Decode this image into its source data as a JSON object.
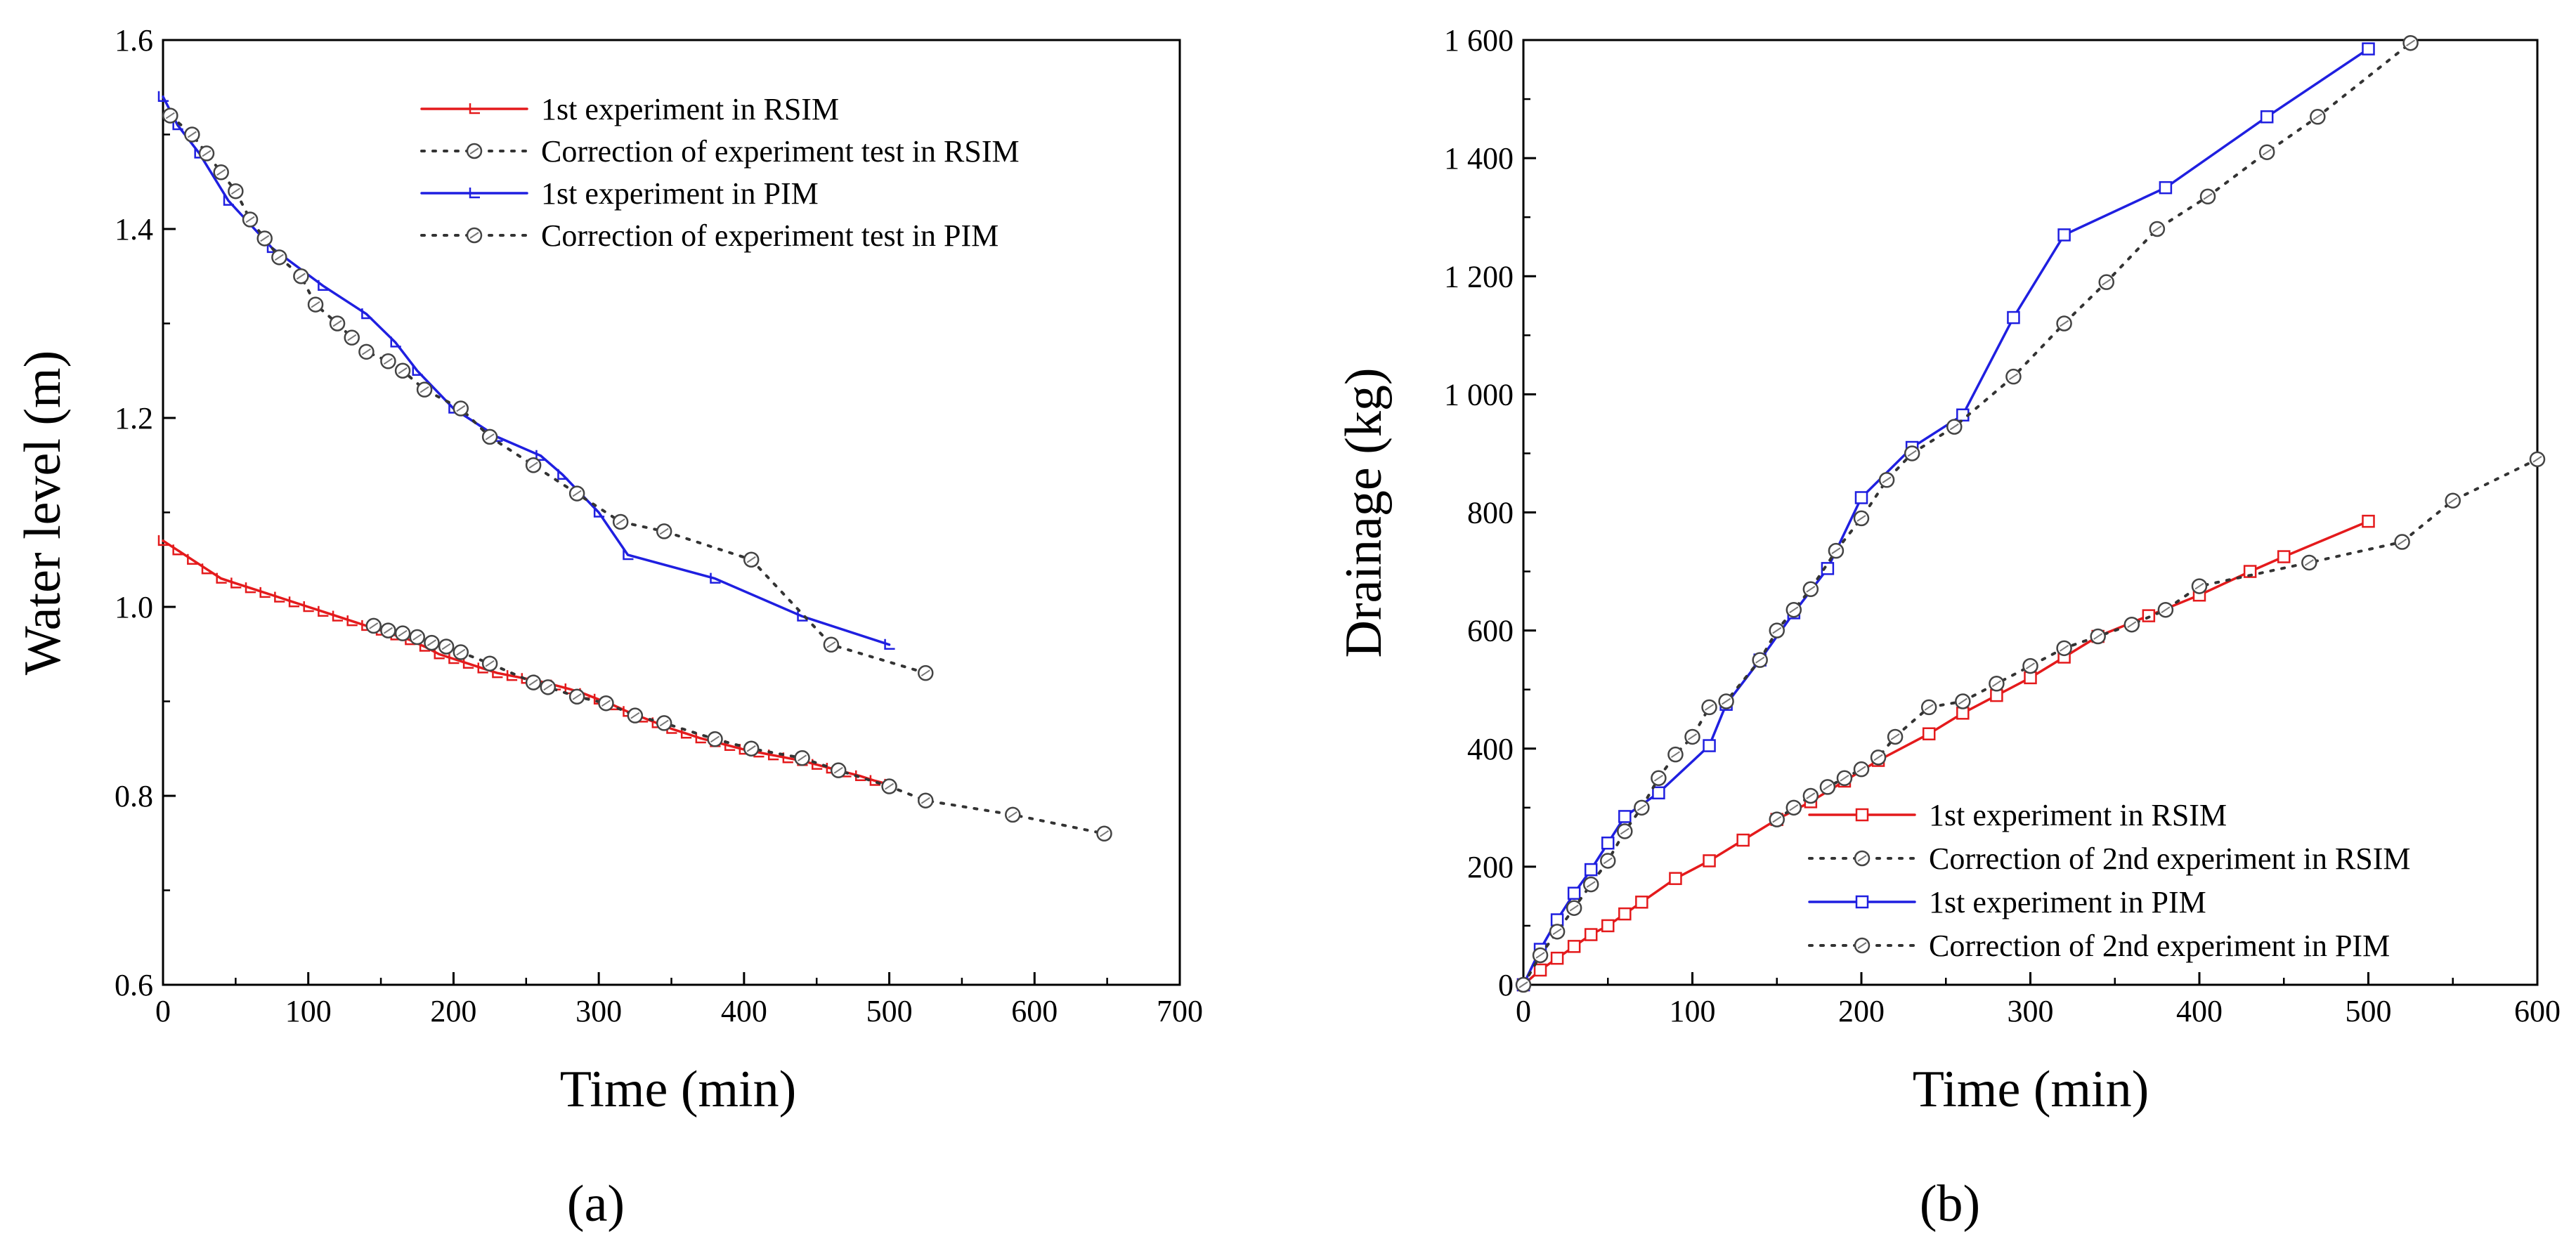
{
  "chart_data": [
    {
      "type": "line",
      "panel": "(a)",
      "title": "",
      "xlabel": "Time (min)",
      "ylabel": "Water level (m)",
      "xlim": [
        0,
        700
      ],
      "ylim": [
        0.6,
        1.6
      ],
      "xticks": [
        "0",
        "100",
        "200",
        "300",
        "400",
        "500",
        "600",
        "700"
      ],
      "yticks": [
        "0.6",
        "0.8",
        "1.0",
        "1.2",
        "1.4",
        "1.6"
      ],
      "legend_position": "top-right",
      "series": [
        {
          "name": "1st experiment in RSIM",
          "color": "#e41a1c",
          "dash": "solid",
          "marker": "step",
          "x": [
            0,
            10,
            20,
            30,
            40,
            50,
            60,
            70,
            80,
            90,
            100,
            110,
            120,
            130,
            140,
            150,
            160,
            170,
            180,
            190,
            200,
            210,
            220,
            230,
            240,
            250,
            260,
            270,
            280,
            290,
            300,
            310,
            320,
            330,
            340,
            350,
            360,
            370,
            380,
            390,
            400,
            410,
            420,
            430,
            440,
            450,
            460,
            470,
            480,
            490,
            500
          ],
          "y": [
            1.07,
            1.06,
            1.05,
            1.04,
            1.03,
            1.025,
            1.02,
            1.015,
            1.01,
            1.005,
            1.0,
            0.995,
            0.99,
            0.985,
            0.98,
            0.975,
            0.97,
            0.965,
            0.958,
            0.95,
            0.945,
            0.94,
            0.935,
            0.93,
            0.927,
            0.924,
            0.921,
            0.917,
            0.913,
            0.908,
            0.902,
            0.896,
            0.889,
            0.883,
            0.877,
            0.871,
            0.866,
            0.861,
            0.857,
            0.853,
            0.849,
            0.846,
            0.843,
            0.84,
            0.837,
            0.833,
            0.829,
            0.825,
            0.821,
            0.816,
            0.812
          ]
        },
        {
          "name": "Correction of experiment test in RSIM",
          "color": "#333333",
          "dash": "dotted",
          "marker": "circle",
          "x": [
            145,
            155,
            165,
            175,
            185,
            195,
            205,
            225,
            255,
            265,
            285,
            305,
            325,
            345,
            380,
            405,
            440,
            465,
            500,
            525,
            585,
            648
          ],
          "y": [
            0.98,
            0.975,
            0.972,
            0.968,
            0.962,
            0.958,
            0.952,
            0.94,
            0.92,
            0.915,
            0.905,
            0.898,
            0.885,
            0.877,
            0.86,
            0.85,
            0.84,
            0.827,
            0.81,
            0.795,
            0.78,
            0.76
          ]
        },
        {
          "name": "1st experiment in PIM",
          "color": "#1f1fe0",
          "dash": "solid",
          "marker": "step",
          "x": [
            0,
            10,
            25,
            45,
            75,
            110,
            140,
            160,
            175,
            200,
            230,
            260,
            275,
            300,
            320,
            380,
            440,
            500
          ],
          "y": [
            1.54,
            1.51,
            1.48,
            1.43,
            1.38,
            1.34,
            1.31,
            1.28,
            1.25,
            1.21,
            1.18,
            1.16,
            1.14,
            1.1,
            1.055,
            1.03,
            0.99,
            0.96
          ]
        },
        {
          "name": "Correction of experiment test in PIM",
          "color": "#333333",
          "dash": "dotted",
          "marker": "circle",
          "x": [
            5,
            20,
            30,
            40,
            50,
            60,
            70,
            80,
            95,
            105,
            120,
            130,
            140,
            155,
            165,
            180,
            205,
            225,
            255,
            285,
            315,
            345,
            405,
            460,
            525
          ],
          "y": [
            1.52,
            1.5,
            1.48,
            1.46,
            1.44,
            1.41,
            1.39,
            1.37,
            1.35,
            1.32,
            1.3,
            1.285,
            1.27,
            1.26,
            1.25,
            1.23,
            1.21,
            1.18,
            1.15,
            1.12,
            1.09,
            1.08,
            1.05,
            0.96,
            0.93
          ]
        }
      ]
    },
    {
      "type": "line",
      "panel": "(b)",
      "title": "",
      "xlabel": "Time (min)",
      "ylabel": "Drainage (kg)",
      "xlim": [
        0,
        600
      ],
      "ylim": [
        0,
        1600
      ],
      "xticks": [
        "0",
        "100",
        "200",
        "300",
        "400",
        "500",
        "600"
      ],
      "yticks": [
        "0",
        "200",
        "400",
        "600",
        "800",
        "1 000",
        "1 200",
        "1 400",
        "1 600"
      ],
      "legend_position": "bottom-right",
      "series": [
        {
          "name": "1st experiment in RSIM",
          "color": "#e41a1c",
          "dash": "solid",
          "marker": "square",
          "x": [
            0,
            10,
            20,
            30,
            40,
            50,
            60,
            70,
            90,
            110,
            130,
            150,
            170,
            190,
            210,
            240,
            260,
            280,
            300,
            320,
            340,
            370,
            400,
            430,
            450,
            500
          ],
          "y": [
            0,
            25,
            45,
            65,
            85,
            100,
            120,
            140,
            180,
            210,
            245,
            280,
            310,
            345,
            380,
            425,
            460,
            490,
            520,
            555,
            590,
            625,
            660,
            700,
            725,
            785
          ]
        },
        {
          "name": "Correction of 2nd experiment in RSIM",
          "color": "#333333",
          "dash": "dotted",
          "marker": "circle",
          "x": [
            150,
            160,
            170,
            180,
            190,
            200,
            210,
            220,
            240,
            260,
            280,
            300,
            320,
            340,
            360,
            380,
            400,
            465,
            520,
            550,
            600
          ],
          "y": [
            280,
            300,
            320,
            335,
            350,
            365,
            385,
            420,
            470,
            480,
            510,
            540,
            570,
            590,
            610,
            635,
            675,
            715,
            750,
            820,
            890
          ]
        },
        {
          "name": "1st experiment in PIM",
          "color": "#1f1fe0",
          "dash": "solid",
          "marker": "square",
          "x": [
            0,
            10,
            20,
            30,
            40,
            50,
            60,
            80,
            110,
            120,
            140,
            160,
            180,
            200,
            230,
            260,
            290,
            320,
            380,
            440,
            500
          ],
          "y": [
            0,
            60,
            110,
            155,
            195,
            240,
            285,
            325,
            405,
            475,
            550,
            630,
            705,
            825,
            910,
            965,
            1130,
            1270,
            1350,
            1470,
            1585
          ]
        },
        {
          "name": "Correction of 2nd experiment in PIM",
          "color": "#333333",
          "dash": "dotted",
          "marker": "circle",
          "x": [
            0,
            10,
            20,
            30,
            40,
            50,
            60,
            70,
            80,
            90,
            100,
            110,
            120,
            140,
            150,
            160,
            170,
            185,
            200,
            215,
            230,
            255,
            290,
            320,
            345,
            375,
            405,
            440,
            470,
            525
          ],
          "y": [
            0,
            50,
            90,
            130,
            170,
            210,
            260,
            300,
            350,
            390,
            420,
            470,
            480,
            550,
            600,
            635,
            670,
            735,
            790,
            855,
            900,
            945,
            1030,
            1120,
            1190,
            1280,
            1335,
            1410,
            1470,
            1595
          ]
        }
      ]
    }
  ]
}
